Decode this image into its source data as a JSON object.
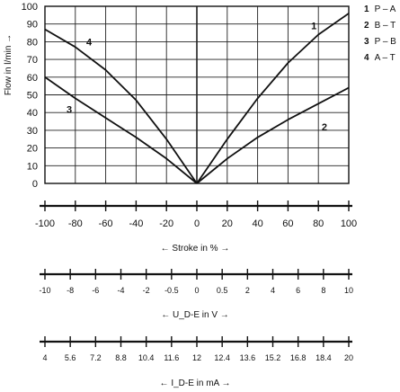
{
  "chart_data": {
    "type": "line",
    "ylabel": "Flow in l/min →",
    "xlabel": "← Stroke in % →",
    "xlim": [
      -100,
      100
    ],
    "ylim": [
      0,
      100
    ],
    "x_ticks": [
      -100,
      -80,
      -60,
      -40,
      -20,
      0,
      20,
      40,
      60,
      80,
      100
    ],
    "y_ticks": [
      0,
      10,
      20,
      30,
      40,
      50,
      60,
      70,
      80,
      90,
      100
    ],
    "grid": true,
    "series": [
      {
        "name": "P – A",
        "label": "1",
        "x": [
          0,
          20,
          40,
          60,
          80,
          100
        ],
        "y": [
          0,
          25,
          48,
          68,
          84,
          96
        ]
      },
      {
        "name": "B – T",
        "label": "2",
        "x": [
          0,
          20,
          40,
          60,
          80,
          100
        ],
        "y": [
          0,
          14,
          26,
          36,
          45,
          54
        ]
      },
      {
        "name": "P – B",
        "label": "3",
        "x": [
          0,
          -20,
          -40,
          -60,
          -80,
          -100
        ],
        "y": [
          0,
          14,
          26,
          37,
          48,
          60
        ]
      },
      {
        "name": "A – T",
        "label": "4",
        "x": [
          0,
          -20,
          -40,
          -60,
          -80,
          -100
        ],
        "y": [
          0,
          25,
          47,
          64,
          77,
          87
        ]
      }
    ],
    "voltage_scale": {
      "ticks": [
        "-10",
        "-8",
        "-6",
        "-4",
        "-2",
        "-0.5",
        "0",
        "0.5",
        "2",
        "4",
        "6",
        "8",
        "10"
      ],
      "label": "← U_D-E in V →"
    },
    "current_scale": {
      "ticks": [
        "4",
        "5.6",
        "7.2",
        "8.8",
        "10.4",
        "11.6",
        "12",
        "12.4",
        "13.6",
        "15.2",
        "16.8",
        "18.4",
        "20"
      ],
      "label": "← I_D-E in mA →"
    }
  },
  "legend": [
    {
      "num": "1",
      "text": "P – A"
    },
    {
      "num": "2",
      "text": "B – T"
    },
    {
      "num": "3",
      "text": "P – B"
    },
    {
      "num": "4",
      "text": "A – T"
    }
  ]
}
